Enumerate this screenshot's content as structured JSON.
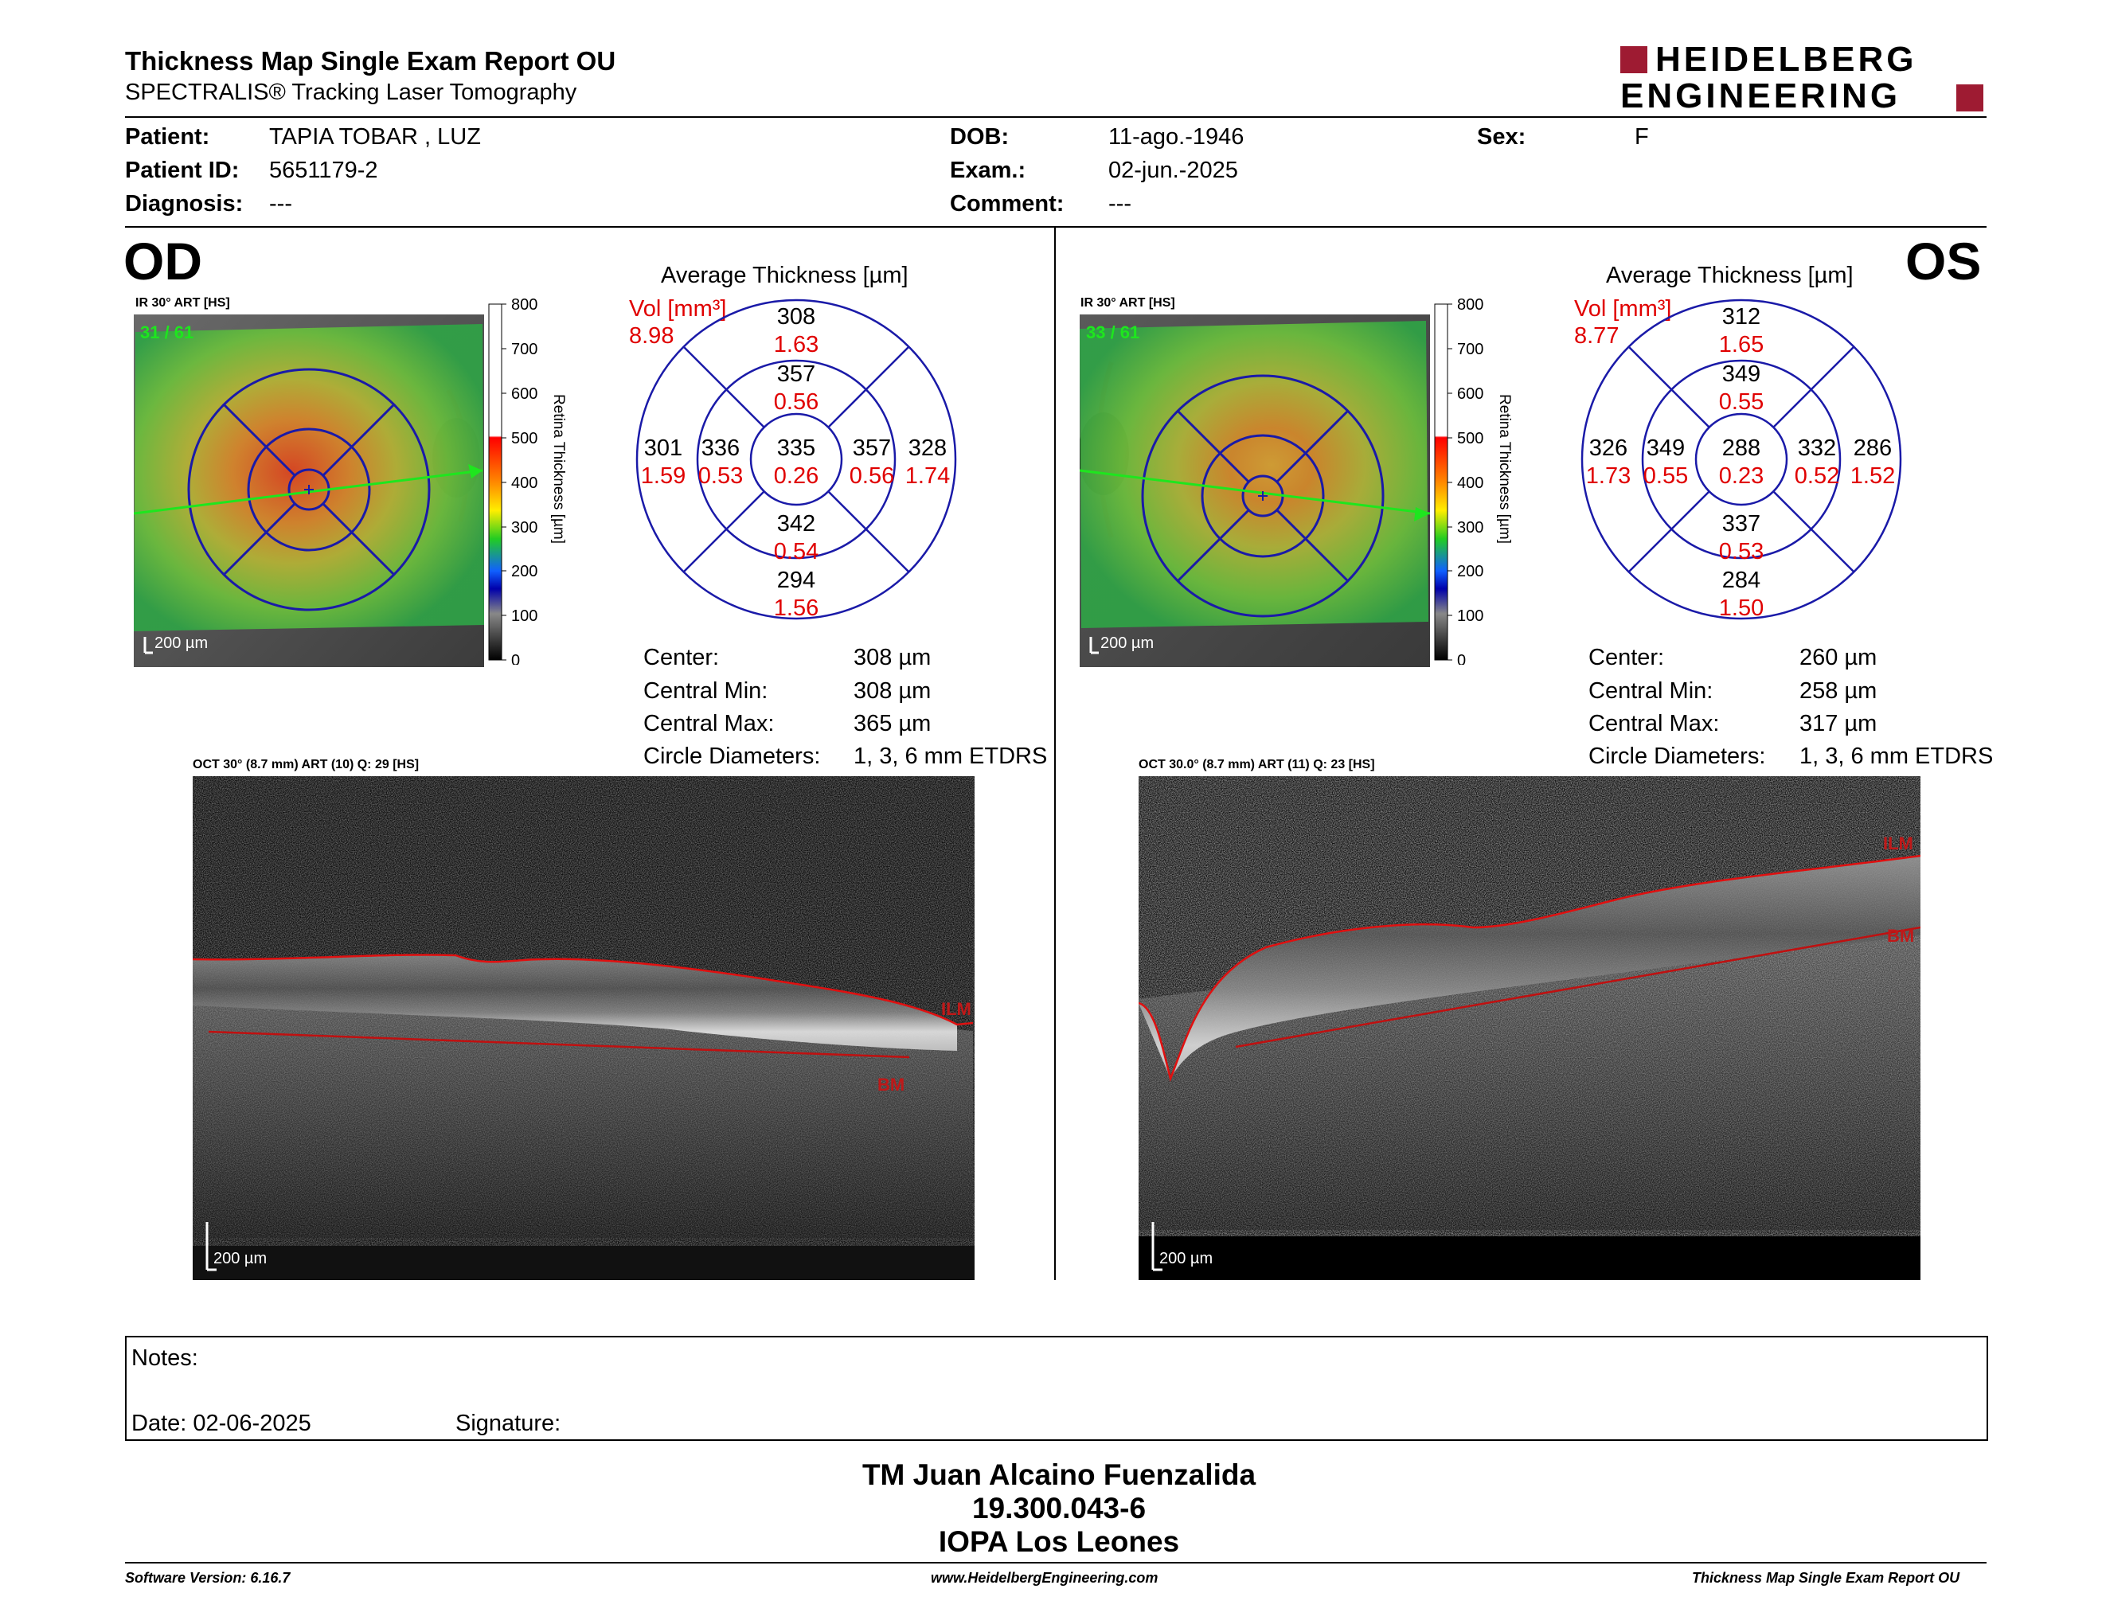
{
  "header": {
    "title": "Thickness Map Single Exam Report OU",
    "subtitle": "SPECTRALIS® Tracking Laser Tomography",
    "logo_line1": "HEIDELBERG",
    "logo_line2": "ENGINEERING"
  },
  "patient": {
    "patient_label": "Patient:",
    "patient_value": "TAPIA TOBAR , LUZ",
    "id_label": "Patient ID:",
    "id_value": "5651179-2",
    "diagnosis_label": "Diagnosis:",
    "diagnosis_value": "---",
    "dob_label": "DOB:",
    "dob_value": "11-ago.-1946",
    "exam_label": "Exam.:",
    "exam_value": "02-jun.-2025",
    "comment_label": "Comment:",
    "comment_value": "---",
    "sex_label": "Sex:",
    "sex_value": "F"
  },
  "od": {
    "eye": "OD",
    "ir_label": "IR 30° ART [HS]",
    "frames": "31 / 61",
    "scale": "200 µm",
    "colorbar_ticks": [
      "800",
      "700",
      "600",
      "500",
      "400",
      "300",
      "200",
      "100",
      "0"
    ],
    "colorbar_label": "Retina Thickness [µm]",
    "avg_title": "Average Thickness [µm]",
    "vol_label": "Vol [mm³]",
    "vol_total": "8.98",
    "sectors": {
      "center": {
        "t": "335",
        "v": "0.26"
      },
      "inner_sup": {
        "t": "357",
        "v": "0.56"
      },
      "inner_inf": {
        "t": "342",
        "v": "0.54"
      },
      "inner_left": {
        "t": "336",
        "v": "0.53"
      },
      "inner_right": {
        "t": "357",
        "v": "0.56"
      },
      "outer_sup": {
        "t": "308",
        "v": "1.63"
      },
      "outer_inf": {
        "t": "294",
        "v": "1.56"
      },
      "outer_left": {
        "t": "301",
        "v": "1.59"
      },
      "outer_right": {
        "t": "328",
        "v": "1.74"
      }
    },
    "stats": [
      {
        "label": "Center:",
        "value": "308 µm"
      },
      {
        "label": "Central Min:",
        "value": "308 µm"
      },
      {
        "label": "Central Max:",
        "value": "365 µm"
      },
      {
        "label": "Circle Diameters:",
        "value": "1, 3, 6 mm ETDRS"
      }
    ],
    "oct_label": "OCT 30° (8.7 mm) ART (10) Q: 29 [HS]",
    "ilm": "ILM",
    "bm": "BM",
    "oct_scale": "200 µm"
  },
  "os": {
    "eye": "OS",
    "ir_label": "IR 30° ART [HS]",
    "frames": "33 / 61",
    "scale": "200 µm",
    "colorbar_ticks": [
      "800",
      "700",
      "600",
      "500",
      "400",
      "300",
      "200",
      "100",
      "0"
    ],
    "colorbar_label": "Retina Thickness [µm]",
    "avg_title": "Average Thickness [µm]",
    "vol_label": "Vol [mm³]",
    "vol_total": "8.77",
    "sectors": {
      "center": {
        "t": "288",
        "v": "0.23"
      },
      "inner_sup": {
        "t": "349",
        "v": "0.55"
      },
      "inner_inf": {
        "t": "337",
        "v": "0.53"
      },
      "inner_left": {
        "t": "349",
        "v": "0.55"
      },
      "inner_right": {
        "t": "332",
        "v": "0.52"
      },
      "outer_sup": {
        "t": "312",
        "v": "1.65"
      },
      "outer_inf": {
        "t": "284",
        "v": "1.50"
      },
      "outer_left": {
        "t": "326",
        "v": "1.73"
      },
      "outer_right": {
        "t": "286",
        "v": "1.52"
      }
    },
    "stats": [
      {
        "label": "Center:",
        "value": "260 µm"
      },
      {
        "label": "Central Min:",
        "value": "258 µm"
      },
      {
        "label": "Central Max:",
        "value": "317 µm"
      },
      {
        "label": "Circle Diameters:",
        "value": "1, 3, 6 mm ETDRS"
      }
    ],
    "oct_label": "OCT 30.0° (8.7 mm) ART (11) Q: 23 [HS]",
    "ilm": "ILM",
    "bm": "BM",
    "oct_scale": "200 µm"
  },
  "notes": {
    "notes_label": "Notes:",
    "date_label": "Date: 02-06-2025",
    "signature_label": "Signature:"
  },
  "signer": {
    "name": "TM Juan Alcaino Fuenzalida",
    "id": "19.300.043-6",
    "org": "IOPA Los Leones"
  },
  "footer": {
    "software": "Software Version: 6.16.7",
    "website": "www.HeidelbergEngineering.com",
    "report": "Thickness Map Single Exam Report OU"
  },
  "colors": {
    "accent_red": "#9e1b32",
    "volume_red": "#e00000",
    "grid_blue": "#1a1aa8"
  }
}
